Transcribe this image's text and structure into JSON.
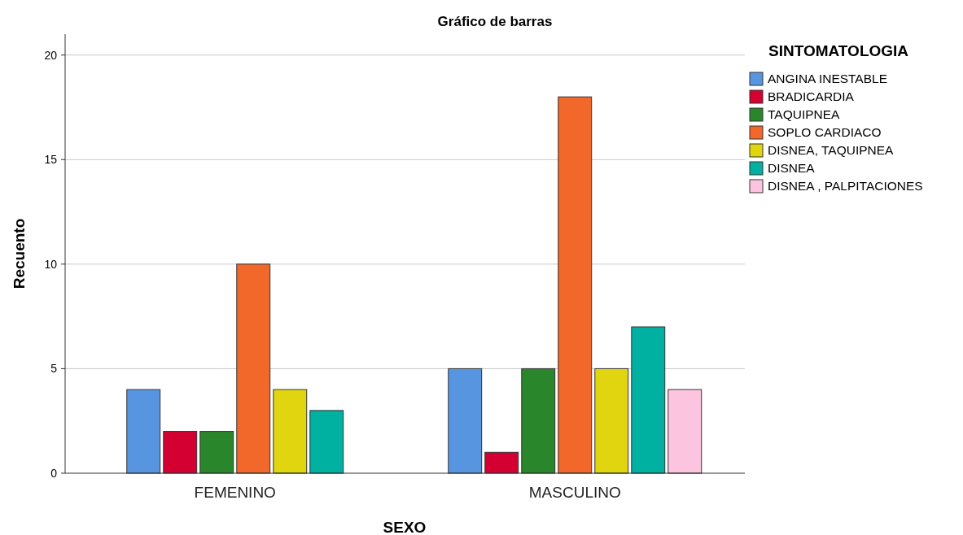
{
  "chart_data": {
    "type": "bar",
    "title": "Gráfico de barras",
    "xlabel": "SEXO",
    "ylabel": "Recuento",
    "legend_title": "SINTOMATOLOGIA",
    "categories": [
      "FEMENINO",
      "MASCULINO"
    ],
    "series": [
      {
        "name": "ANGINA INESTABLE",
        "color": "#5895e1",
        "values": [
          4,
          5
        ]
      },
      {
        "name": "BRADICARDIA",
        "color": "#d50032",
        "values": [
          2,
          1
        ]
      },
      {
        "name": "TAQUIPNEA",
        "color": "#2a862a",
        "values": [
          2,
          5
        ]
      },
      {
        "name": "SOPLO CARDIACO",
        "color": "#f2682a",
        "values": [
          10,
          18
        ]
      },
      {
        "name": "DISNEA, TAQUIPNEA",
        "color": "#e1d50f",
        "values": [
          4,
          5
        ]
      },
      {
        "name": "DISNEA",
        "color": "#00b0a0",
        "values": [
          3,
          7
        ]
      },
      {
        "name": "DISNEA , PALPITACIONES",
        "color": "#fcc4df",
        "values": [
          null,
          4
        ]
      }
    ],
    "ylim": [
      0,
      21
    ],
    "yticks": [
      0,
      5,
      10,
      15,
      20
    ],
    "grid": "y",
    "legend": "top right"
  }
}
